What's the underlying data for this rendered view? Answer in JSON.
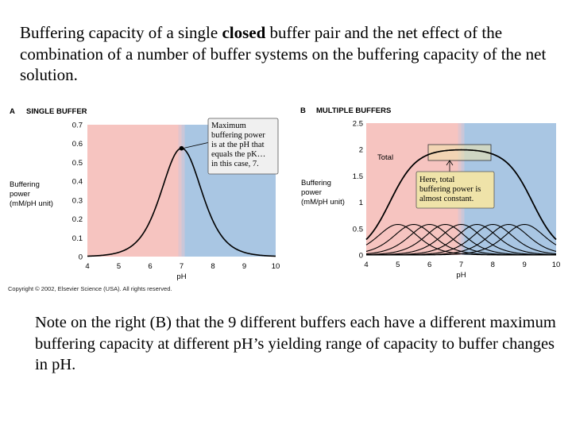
{
  "slide": {
    "title_part1": "Buffering capacity of a single ",
    "title_bold": "closed",
    "title_part2": " buffer pair and the net effect of the combination of a number of buffer systems on the buffering capacity of the net solution.",
    "note": "Note on the right (B) that the 9 different buffers each have a different maximum buffering capacity at different pH’s yielding range of capacity to buffer changes in pH.",
    "copyright": "Copyright © 2002, Elsevier Science (USA). All rights reserved."
  },
  "colors": {
    "acid_region": "#f6c4c0",
    "base_region": "#a9c6e3",
    "curve": "#000000",
    "callout_a_fill": "#f0f0f0",
    "callout_b_fill": "#efe3a9",
    "callout_b_total_box": "#efe3a9"
  },
  "chart_data": [
    {
      "type": "line",
      "panel_letter": "A",
      "title": "SINGLE BUFFER",
      "xlabel": "pH",
      "ylabel": "Buffering power (mM/pH unit)",
      "ylabel_lines": [
        "Buffering",
        "power",
        "(mM/pH unit)"
      ],
      "xlim": [
        4,
        10
      ],
      "ylim": [
        0,
        0.7
      ],
      "xticks": [
        4,
        5,
        6,
        7,
        8,
        9,
        10
      ],
      "yticks": [
        0,
        0.1,
        0.2,
        0.3,
        0.4,
        0.5,
        0.6,
        0.7
      ],
      "ytick_labels": [
        "0",
        "0.1",
        "0.2",
        "0.3",
        "0.4",
        "0.5",
        "0.6",
        "0.7"
      ],
      "background_split_pH": 7,
      "series": [
        {
          "pK": 7,
          "peak": 0.575
        }
      ],
      "marked_point": {
        "x": 7,
        "y": 0.575
      },
      "annotation": [
        "Maximum",
        "buffering power",
        "is at the pH that",
        "equals the pK…",
        "in this case, 7."
      ]
    },
    {
      "type": "line",
      "panel_letter": "B",
      "title": "MULTIPLE BUFFERS",
      "xlabel": "pH",
      "ylabel": "Buffering power (mM/pH unit)",
      "ylabel_lines": [
        "Buffering",
        "power",
        "(mM/pH unit)"
      ],
      "xlim": [
        4,
        10
      ],
      "ylim": [
        0,
        2.5
      ],
      "xticks": [
        4,
        5,
        6,
        7,
        8,
        9,
        10
      ],
      "yticks": [
        0,
        0.5,
        1,
        1.5,
        2,
        2.5
      ],
      "ytick_labels": [
        "0",
        "0.5",
        "1",
        "1.5",
        "2",
        "2.5"
      ],
      "background_split_pH": 7,
      "individual_buffers": [
        {
          "pK": 5.0,
          "peak": 0.58
        },
        {
          "pK": 5.5,
          "peak": 0.58
        },
        {
          "pK": 6.0,
          "peak": 0.58
        },
        {
          "pK": 6.5,
          "peak": 0.58
        },
        {
          "pK": 7.0,
          "peak": 0.58
        },
        {
          "pK": 7.5,
          "peak": 0.58
        },
        {
          "pK": 8.0,
          "peak": 0.58
        },
        {
          "pK": 8.5,
          "peak": 0.58
        },
        {
          "pK": 9.0,
          "peak": 0.58
        }
      ],
      "total_label": "Total",
      "annotation": [
        "Here, total",
        "buffering power is",
        "almost constant."
      ]
    }
  ]
}
